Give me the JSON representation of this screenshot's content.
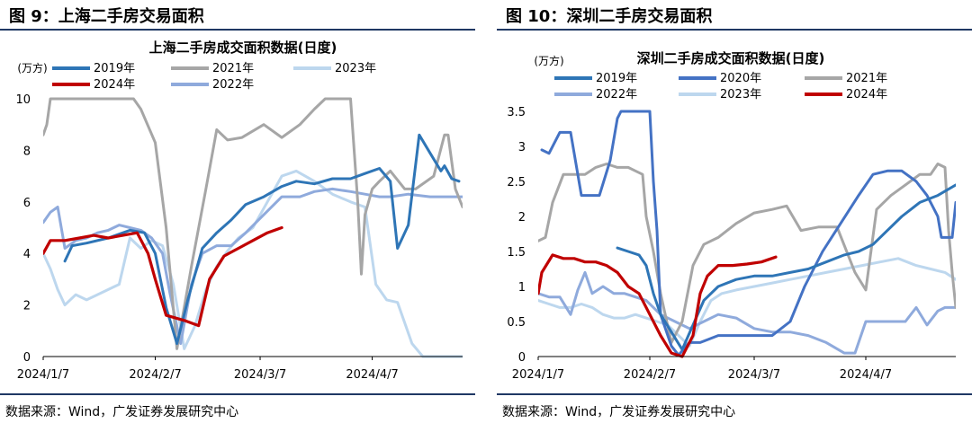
{
  "colors": {
    "c2019": "#2e75b6",
    "c2020": "#4472c4",
    "c2021": "#a6a6a6",
    "c2022": "#8faadc",
    "c2023": "#bdd7ee",
    "c2024": "#c00000",
    "rule": "#1f3864"
  },
  "panels": [
    {
      "figure_title": "图 9：上海二手房交易面积",
      "source": "数据来源：Wind，广发证券发展研究中心",
      "chart_data": {
        "type": "line",
        "title": "上海二手房成交面积数据(日度)",
        "ylabel": "(万方)",
        "ylim": [
          0,
          10
        ],
        "yticks": [
          "0",
          "2",
          "4",
          "6",
          "8",
          "10"
        ],
        "xlim": [
          "2024/1/7",
          "2024/5/2"
        ],
        "xticks": [
          "2024/1/7",
          "2024/2/7",
          "2024/3/7",
          "2024/4/7"
        ],
        "legend_position": "top",
        "series": [
          {
            "name": "2019年",
            "color_key": "c2019",
            "x": [
              "2024/1/13",
              "2024/1/15",
              "2024/1/19",
              "2024/1/25",
              "2024/1/31",
              "2024/2/4",
              "2024/2/7",
              "2024/2/10",
              "2024/2/13",
              "2024/2/16",
              "2024/2/20",
              "2024/2/24",
              "2024/2/28",
              "2024/3/3",
              "2024/3/8",
              "2024/3/13",
              "2024/3/17",
              "2024/3/22",
              "2024/3/27",
              "2024/4/1",
              "2024/4/5",
              "2024/4/9",
              "2024/4/12",
              "2024/4/14",
              "2024/4/17",
              "2024/4/20",
              "2024/4/23",
              "2024/4/26",
              "2024/4/27",
              "2024/4/29",
              "2024/5/1"
            ],
            "values": [
              3.7,
              4.3,
              4.4,
              4.6,
              4.9,
              4.8,
              4.0,
              1.9,
              0.5,
              2.2,
              4.2,
              4.8,
              5.3,
              5.9,
              6.2,
              6.6,
              6.8,
              6.7,
              6.9,
              6.9,
              7.1,
              7.3,
              6.8,
              4.2,
              5.1,
              8.6,
              7.9,
              7.2,
              7.4,
              6.9,
              6.8
            ]
          },
          {
            "name": "2021年",
            "color_key": "c2021",
            "x": [
              "2024/1/7",
              "2024/1/8",
              "2024/1/9",
              "2024/2/1",
              "2024/2/3",
              "2024/2/7",
              "2024/2/10",
              "2024/2/13",
              "2024/2/17",
              "2024/2/21",
              "2024/2/24",
              "2024/2/27",
              "2024/3/2",
              "2024/3/8",
              "2024/3/13",
              "2024/3/18",
              "2024/3/22",
              "2024/3/25",
              "2024/4/1",
              "2024/4/3",
              "2024/4/4",
              "2024/4/5",
              "2024/4/7",
              "2024/4/9",
              "2024/4/12",
              "2024/4/16",
              "2024/4/19",
              "2024/4/24",
              "2024/4/27",
              "2024/4/28",
              "2024/4/30",
              "2024/5/2"
            ],
            "values": [
              8.6,
              9.0,
              10.0,
              10.0,
              9.6,
              8.3,
              5.0,
              0.3,
              3.5,
              6.5,
              8.8,
              8.4,
              8.5,
              9.0,
              8.5,
              9.0,
              9.6,
              10.0,
              10.0,
              6.0,
              3.2,
              5.5,
              6.5,
              6.8,
              7.2,
              6.5,
              6.5,
              7.0,
              8.6,
              8.6,
              6.5,
              5.8
            ]
          },
          {
            "name": "2022年",
            "color_key": "c2022",
            "x": [
              "2024/1/7",
              "2024/1/9",
              "2024/1/11",
              "2024/1/13",
              "2024/1/16",
              "2024/1/19",
              "2024/1/22",
              "2024/1/25",
              "2024/1/28",
              "2024/1/31",
              "2024/2/3",
              "2024/2/6",
              "2024/2/9",
              "2024/2/11",
              "2024/2/14",
              "2024/2/17",
              "2024/2/20",
              "2024/2/24",
              "2024/2/28",
              "2024/3/3",
              "2024/3/8",
              "2024/3/13",
              "2024/3/18",
              "2024/3/22",
              "2024/3/27",
              "2024/4/1",
              "2024/4/5",
              "2024/4/9",
              "2024/4/12",
              "2024/4/17",
              "2024/4/23",
              "2024/4/28",
              "2024/5/2"
            ],
            "values": [
              5.2,
              5.6,
              5.8,
              4.2,
              4.5,
              4.6,
              4.8,
              4.9,
              5.1,
              5.0,
              4.9,
              4.6,
              4.0,
              2.5,
              0.5,
              2.8,
              4.0,
              4.3,
              4.3,
              4.8,
              5.5,
              6.2,
              6.2,
              6.4,
              6.5,
              6.4,
              6.3,
              6.2,
              6.2,
              6.3,
              6.2,
              6.2,
              6.2
            ]
          },
          {
            "name": "2023年",
            "color_key": "c2023",
            "x": [
              "2024/1/7",
              "2024/1/9",
              "2024/1/11",
              "2024/1/13",
              "2024/1/16",
              "2024/1/19",
              "2024/1/22",
              "2024/1/25",
              "2024/1/28",
              "2024/1/31",
              "2024/2/3",
              "2024/2/6",
              "2024/2/9",
              "2024/2/12",
              "2024/2/15",
              "2024/2/18",
              "2024/2/21",
              "2024/2/24",
              "2024/2/27",
              "2024/3/1",
              "2024/3/5",
              "2024/3/9",
              "2024/3/13",
              "2024/3/17",
              "2024/3/22",
              "2024/3/27",
              "2024/4/1",
              "2024/4/5",
              "2024/4/8",
              "2024/4/11",
              "2024/4/14",
              "2024/4/18",
              "2024/4/21",
              "2024/4/24",
              "2024/4/27",
              "2024/4/29",
              "2024/5/2"
            ],
            "values": [
              4.0,
              3.4,
              2.6,
              2.0,
              2.4,
              2.2,
              2.4,
              2.6,
              2.8,
              4.6,
              4.2,
              4.5,
              4.3,
              2.8,
              0.3,
              1.2,
              2.6,
              3.5,
              4.1,
              4.6,
              5.0,
              6.0,
              7.0,
              7.2,
              6.8,
              6.3,
              6.0,
              5.8,
              2.8,
              2.2,
              2.1,
              0.5,
              0.0,
              0.0,
              0.0,
              0.0,
              0.0
            ]
          },
          {
            "name": "2024年",
            "color_key": "c2024",
            "x": [
              "2024/1/7",
              "2024/1/9",
              "2024/1/13",
              "2024/1/17",
              "2024/1/21",
              "2024/1/25",
              "2024/1/29",
              "2024/2/2",
              "2024/2/5",
              "2024/2/7",
              "2024/2/10",
              "2024/2/15",
              "2024/2/19",
              "2024/2/22",
              "2024/2/26",
              "2024/3/1",
              "2024/3/5",
              "2024/3/9",
              "2024/3/13"
            ],
            "values": [
              4.0,
              4.5,
              4.5,
              4.6,
              4.7,
              4.6,
              4.7,
              4.8,
              4.0,
              3.0,
              1.6,
              1.4,
              1.2,
              3.0,
              3.9,
              4.2,
              4.5,
              4.8,
              5.0
            ]
          }
        ]
      }
    },
    {
      "figure_title": "图 10：深圳二手房交易面积",
      "source": "数据来源：Wind，广发证券发展研究中心",
      "chart_data": {
        "type": "line",
        "title": "深圳二手房成交面积数据(日度)",
        "ylabel": "(万方)",
        "ylim": [
          0,
          3.5
        ],
        "yticks": [
          "0",
          "0.5",
          "1",
          "1.5",
          "2",
          "2.5",
          "3",
          "3.5"
        ],
        "xlim": [
          "2024/1/7",
          "2024/5/2"
        ],
        "xticks": [
          "2024/1/7",
          "2024/2/7",
          "2024/3/7",
          "2024/4/7"
        ],
        "legend_position": "top",
        "series": [
          {
            "name": "2019年",
            "color_key": "c2019",
            "x": [
              "2024/1/29",
              "2024/2/1",
              "2024/2/4",
              "2024/2/6",
              "2024/2/8",
              "2024/2/10",
              "2024/2/13",
              "2024/2/16",
              "2024/2/19",
              "2024/2/22",
              "2024/2/26",
              "2024/3/2",
              "2024/3/7",
              "2024/3/12",
              "2024/3/17",
              "2024/3/22",
              "2024/3/27",
              "2024/4/1",
              "2024/4/5",
              "2024/4/9",
              "2024/4/13",
              "2024/4/17",
              "2024/4/22",
              "2024/4/27",
              "2024/5/2"
            ],
            "values": [
              1.55,
              1.5,
              1.45,
              1.3,
              0.9,
              0.6,
              0.35,
              0.1,
              0.45,
              0.8,
              1.0,
              1.1,
              1.15,
              1.15,
              1.2,
              1.25,
              1.35,
              1.45,
              1.5,
              1.6,
              1.8,
              2.0,
              2.2,
              2.3,
              2.45
            ]
          },
          {
            "name": "2020年",
            "color_key": "c2020",
            "x": [
              "2024/1/8",
              "2024/1/10",
              "2024/1/13",
              "2024/1/16",
              "2024/1/19",
              "2024/1/21",
              "2024/1/24",
              "2024/1/27",
              "2024/1/29",
              "2024/1/30",
              "2024/2/1",
              "2024/2/3",
              "2024/2/7",
              "2024/2/8",
              "2024/2/9",
              "2024/2/10",
              "2024/2/12",
              "2024/2/13",
              "2024/2/15",
              "2024/2/18",
              "2024/2/21",
              "2024/2/26",
              "2024/3/2",
              "2024/3/7",
              "2024/3/12",
              "2024/3/17",
              "2024/3/21",
              "2024/3/26",
              "2024/3/31",
              "2024/4/5",
              "2024/4/9",
              "2024/4/13",
              "2024/4/17",
              "2024/4/21",
              "2024/4/24",
              "2024/4/27",
              "2024/4/28",
              "2024/4/29",
              "2024/5/1",
              "2024/5/2"
            ],
            "values": [
              2.95,
              2.9,
              3.2,
              3.2,
              2.3,
              2.3,
              2.3,
              2.8,
              3.4,
              3.5,
              3.5,
              3.5,
              3.5,
              2.5,
              1.8,
              0.6,
              0.3,
              0.15,
              0.02,
              0.2,
              0.2,
              0.3,
              0.3,
              0.3,
              0.3,
              0.5,
              1.0,
              1.5,
              1.9,
              2.3,
              2.6,
              2.65,
              2.65,
              2.5,
              2.3,
              2.0,
              1.7,
              1.7,
              1.7,
              2.2
            ]
          },
          {
            "name": "2021年",
            "color_key": "c2021",
            "x": [
              "2024/1/7",
              "2024/1/9",
              "2024/1/11",
              "2024/1/14",
              "2024/1/17",
              "2024/1/20",
              "2024/1/23",
              "2024/1/26",
              "2024/1/29",
              "2024/2/1",
              "2024/2/3",
              "2024/2/5",
              "2024/2/6",
              "2024/2/8",
              "2024/2/10",
              "2024/2/13",
              "2024/2/16",
              "2024/2/19",
              "2024/2/22",
              "2024/2/26",
              "2024/3/2",
              "2024/3/7",
              "2024/3/12",
              "2024/3/16",
              "2024/3/20",
              "2024/3/25",
              "2024/3/30",
              "2024/4/4",
              "2024/4/7",
              "2024/4/10",
              "2024/4/14",
              "2024/4/18",
              "2024/4/22",
              "2024/4/25",
              "2024/4/27",
              "2024/4/29",
              "2024/4/30",
              "2024/5/1",
              "2024/5/2"
            ],
            "values": [
              1.65,
              1.7,
              2.2,
              2.6,
              2.6,
              2.6,
              2.7,
              2.75,
              2.7,
              2.7,
              2.65,
              2.6,
              2.0,
              1.5,
              0.9,
              0.2,
              0.5,
              1.3,
              1.6,
              1.7,
              1.9,
              2.05,
              2.1,
              2.15,
              1.8,
              1.85,
              1.85,
              1.2,
              0.95,
              2.1,
              2.3,
              2.45,
              2.6,
              2.6,
              2.75,
              2.7,
              1.8,
              1.2,
              0.7
            ]
          },
          {
            "name": "2022年",
            "color_key": "c2022",
            "x": [
              "2024/1/7",
              "2024/1/10",
              "2024/1/13",
              "2024/1/16",
              "2024/1/18",
              "2024/1/20",
              "2024/1/22",
              "2024/1/25",
              "2024/1/28",
              "2024/1/31",
              "2024/2/3",
              "2024/2/6",
              "2024/2/10",
              "2024/2/14",
              "2024/2/18",
              "2024/2/22",
              "2024/2/26",
              "2024/3/2",
              "2024/3/7",
              "2024/3/12",
              "2024/3/17",
              "2024/3/22",
              "2024/3/27",
              "2024/4/1",
              "2024/4/4",
              "2024/4/7",
              "2024/4/10",
              "2024/4/14",
              "2024/4/18",
              "2024/4/21",
              "2024/4/24",
              "2024/4/27",
              "2024/4/29",
              "2024/5/2"
            ],
            "values": [
              0.9,
              0.85,
              0.85,
              0.6,
              0.95,
              1.2,
              0.9,
              1.0,
              0.9,
              0.9,
              0.85,
              0.8,
              0.6,
              0.5,
              0.4,
              0.5,
              0.6,
              0.55,
              0.4,
              0.35,
              0.35,
              0.3,
              0.2,
              0.05,
              0.05,
              0.5,
              0.5,
              0.5,
              0.5,
              0.7,
              0.45,
              0.65,
              0.7,
              0.7
            ]
          },
          {
            "name": "2023年",
            "color_key": "c2023",
            "x": [
              "2024/1/7",
              "2024/1/10",
              "2024/1/13",
              "2024/1/16",
              "2024/1/19",
              "2024/1/22",
              "2024/1/25",
              "2024/1/28",
              "2024/1/31",
              "2024/2/3",
              "2024/2/6",
              "2024/2/9",
              "2024/2/12",
              "2024/2/15",
              "2024/2/18",
              "2024/2/21",
              "2024/2/24",
              "2024/2/27",
              "2024/3/2",
              "2024/3/7",
              "2024/3/12",
              "2024/3/17",
              "2024/3/22",
              "2024/3/27",
              "2024/4/1",
              "2024/4/6",
              "2024/4/11",
              "2024/4/16",
              "2024/4/21",
              "2024/4/25",
              "2024/4/29",
              "2024/5/2"
            ],
            "values": [
              0.8,
              0.75,
              0.7,
              0.7,
              0.75,
              0.7,
              0.6,
              0.55,
              0.55,
              0.6,
              0.55,
              0.5,
              0.45,
              0.3,
              0.15,
              0.5,
              0.8,
              0.9,
              0.95,
              1.0,
              1.05,
              1.1,
              1.15,
              1.2,
              1.25,
              1.3,
              1.35,
              1.4,
              1.3,
              1.25,
              1.2,
              1.1
            ]
          },
          {
            "name": "2024年",
            "color_key": "c2024",
            "x": [
              "2024/1/7",
              "2024/1/8",
              "2024/1/11",
              "2024/1/14",
              "2024/1/17",
              "2024/1/20",
              "2024/1/23",
              "2024/1/26",
              "2024/1/29",
              "2024/2/1",
              "2024/2/4",
              "2024/2/7",
              "2024/2/10",
              "2024/2/13",
              "2024/2/16",
              "2024/2/19",
              "2024/2/21",
              "2024/2/23",
              "2024/2/26",
              "2024/3/1",
              "2024/3/5",
              "2024/3/9",
              "2024/3/13"
            ],
            "values": [
              0.9,
              1.2,
              1.45,
              1.4,
              1.4,
              1.35,
              1.35,
              1.3,
              1.2,
              1.0,
              0.9,
              0.6,
              0.3,
              0.05,
              0.0,
              0.3,
              0.9,
              1.15,
              1.3,
              1.3,
              1.32,
              1.35,
              1.42
            ]
          }
        ]
      }
    }
  ]
}
